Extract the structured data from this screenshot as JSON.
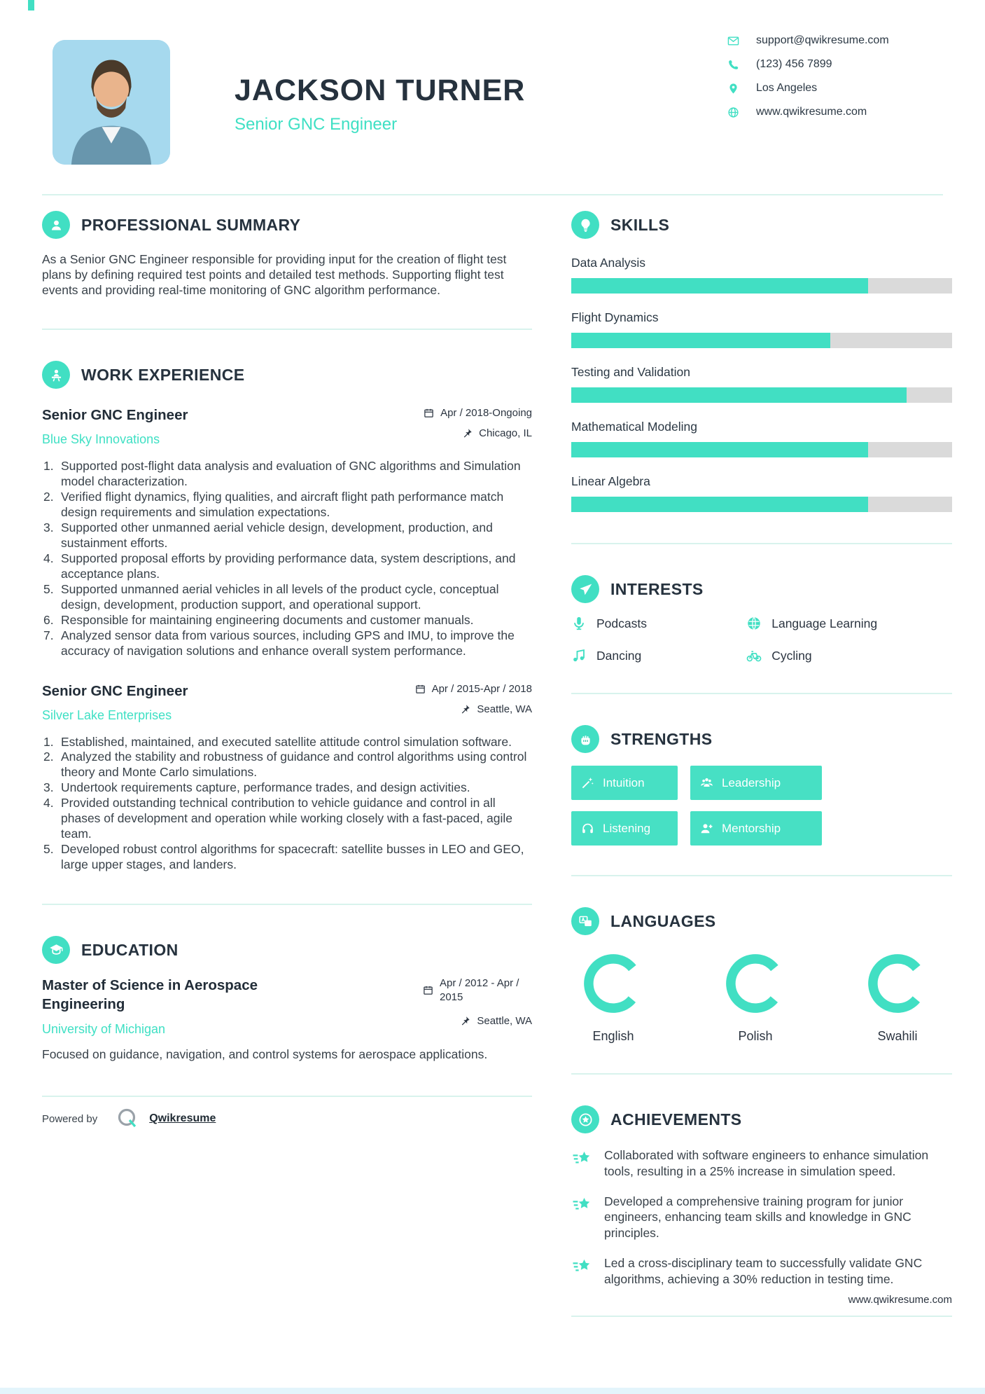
{
  "theme": {
    "accent": "#41dfc3",
    "heading": "#26323e",
    "divider": "#d8f3ed",
    "bar_track": "#dadada",
    "photo_bg": "#a6d9ee"
  },
  "header": {
    "name": "JACKSON TURNER",
    "title": "Senior GNC Engineer",
    "contact": [
      {
        "icon": "email-icon",
        "text": "support@qwikresume.com"
      },
      {
        "icon": "phone-icon",
        "text": "(123) 456 7899"
      },
      {
        "icon": "location-icon",
        "text": "Los Angeles"
      },
      {
        "icon": "website-icon",
        "text": "www.qwikresume.com"
      }
    ]
  },
  "summary": {
    "heading": "PROFESSIONAL SUMMARY",
    "text": "As a Senior GNC Engineer responsible for providing input for the creation of flight test plans by defining required test points and detailed test methods. Supporting flight test events and providing real-time monitoring of GNC algorithm performance."
  },
  "experience": {
    "heading": "WORK EXPERIENCE",
    "jobs": [
      {
        "title": "Senior GNC Engineer",
        "company": "Blue Sky Innovations",
        "dates": "Apr / 2018-Ongoing",
        "location": "Chicago, IL",
        "bullets": [
          "Supported post-flight data analysis and evaluation of GNC algorithms and Simulation model characterization.",
          "Verified flight dynamics, flying qualities, and aircraft flight path performance match design requirements and simulation expectations.",
          "Supported other unmanned aerial vehicle design, development, production, and sustainment efforts.",
          "Supported proposal efforts by providing performance data, system descriptions, and acceptance plans.",
          "Supported unmanned aerial vehicles in all levels of the product cycle, conceptual design, development, production support, and operational support.",
          "Responsible for maintaining engineering documents and customer manuals.",
          "Analyzed sensor data from various sources, including GPS and IMU, to improve the accuracy of navigation solutions and enhance overall system performance."
        ]
      },
      {
        "title": "Senior GNC Engineer",
        "company": "Silver Lake Enterprises",
        "dates": "Apr / 2015-Apr / 2018",
        "location": "Seattle, WA",
        "bullets": [
          "Established, maintained, and executed satellite attitude control simulation software.",
          "Analyzed the stability and robustness of guidance and control algorithms using control theory and Monte Carlo simulations.",
          "Undertook requirements capture, performance trades, and design activities.",
          "Provided outstanding technical contribution to vehicle guidance and control in all phases of development and operation while working closely with a fast-paced, agile team.",
          "Developed robust control algorithms for spacecraft: satellite busses in LEO and GEO, large upper stages, and landers."
        ]
      }
    ]
  },
  "education": {
    "heading": "EDUCATION",
    "degree": "Master of Science in Aerospace Engineering",
    "school": "University of Michigan",
    "dates": "Apr / 2012 - Apr / 2015",
    "location": "Seattle, WA",
    "description": "Focused on guidance, navigation, and control systems for aerospace applications."
  },
  "skills": {
    "heading": "SKILLS",
    "items": [
      {
        "name": "Data Analysis",
        "percent": 78
      },
      {
        "name": "Flight Dynamics",
        "percent": 68
      },
      {
        "name": "Testing and Validation",
        "percent": 88
      },
      {
        "name": "Mathematical Modeling",
        "percent": 78
      },
      {
        "name": "Linear Algebra",
        "percent": 78
      }
    ]
  },
  "interests": {
    "heading": "INTERESTS",
    "items": [
      {
        "icon": "microphone-icon",
        "name": "Podcasts"
      },
      {
        "icon": "globe-icon",
        "name": "Language Learning"
      },
      {
        "icon": "music-note-icon",
        "name": "Dancing"
      },
      {
        "icon": "bicycle-icon",
        "name": "Cycling"
      }
    ]
  },
  "strengths": {
    "heading": "STRENGTHS",
    "items": [
      {
        "icon": "magic-wand-icon",
        "name": "Intuition"
      },
      {
        "icon": "team-icon",
        "name": "Leadership"
      },
      {
        "icon": "headphones-icon",
        "name": "Listening"
      },
      {
        "icon": "user-plus-icon",
        "name": "Mentorship"
      }
    ]
  },
  "languages": {
    "heading": "LANGUAGES",
    "items": [
      {
        "name": "English",
        "percent": 78
      },
      {
        "name": "Polish",
        "percent": 78
      },
      {
        "name": "Swahili",
        "percent": 78
      }
    ]
  },
  "achievements": {
    "heading": "ACHIEVEMENTS",
    "items": [
      "Collaborated with software engineers to enhance simulation tools, resulting in a 25% increase in simulation speed.",
      "Developed a comprehensive training program for junior engineers, enhancing team skills and knowledge in GNC principles.",
      "Led a cross-disciplinary team to successfully validate GNC algorithms, achieving a 30% reduction in testing time."
    ]
  },
  "footer": {
    "powered_by": "Powered by",
    "brand": "Qwikresume",
    "website": "www.qwikresume.com"
  }
}
